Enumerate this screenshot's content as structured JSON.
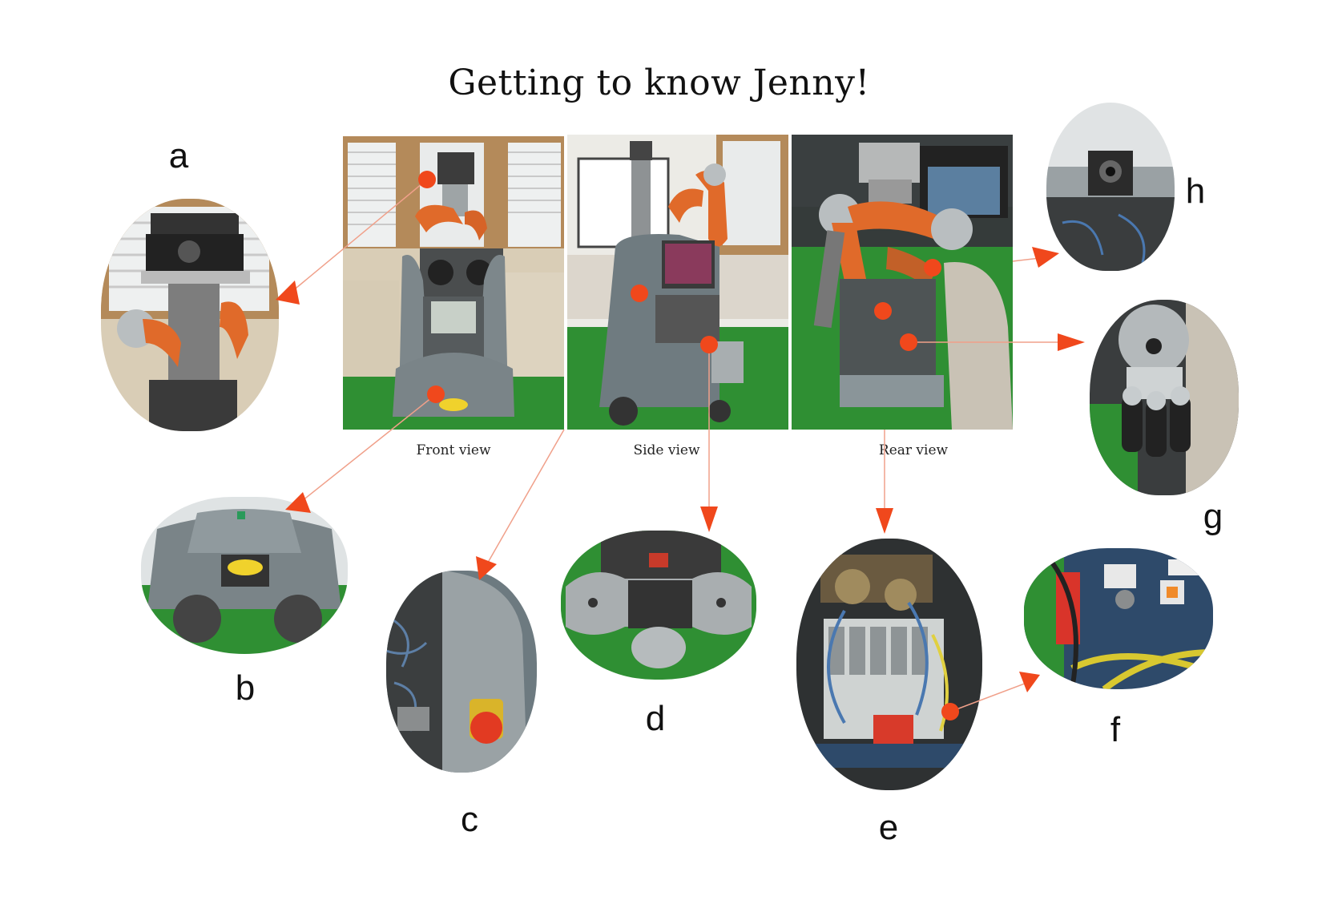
{
  "title": "Getting to know Jenny!",
  "views": {
    "front": "Front view",
    "side": "Side view",
    "rear": "Rear view"
  },
  "labels": {
    "a": "a",
    "b": "b",
    "c": "c",
    "d": "d",
    "e": "e",
    "f": "f",
    "g": "g",
    "h": "h"
  },
  "colors": {
    "marker": "#f0481c",
    "robot_arm": "#e06a2a",
    "floor": "#2f8f33",
    "robot_body": "#8a9599"
  }
}
